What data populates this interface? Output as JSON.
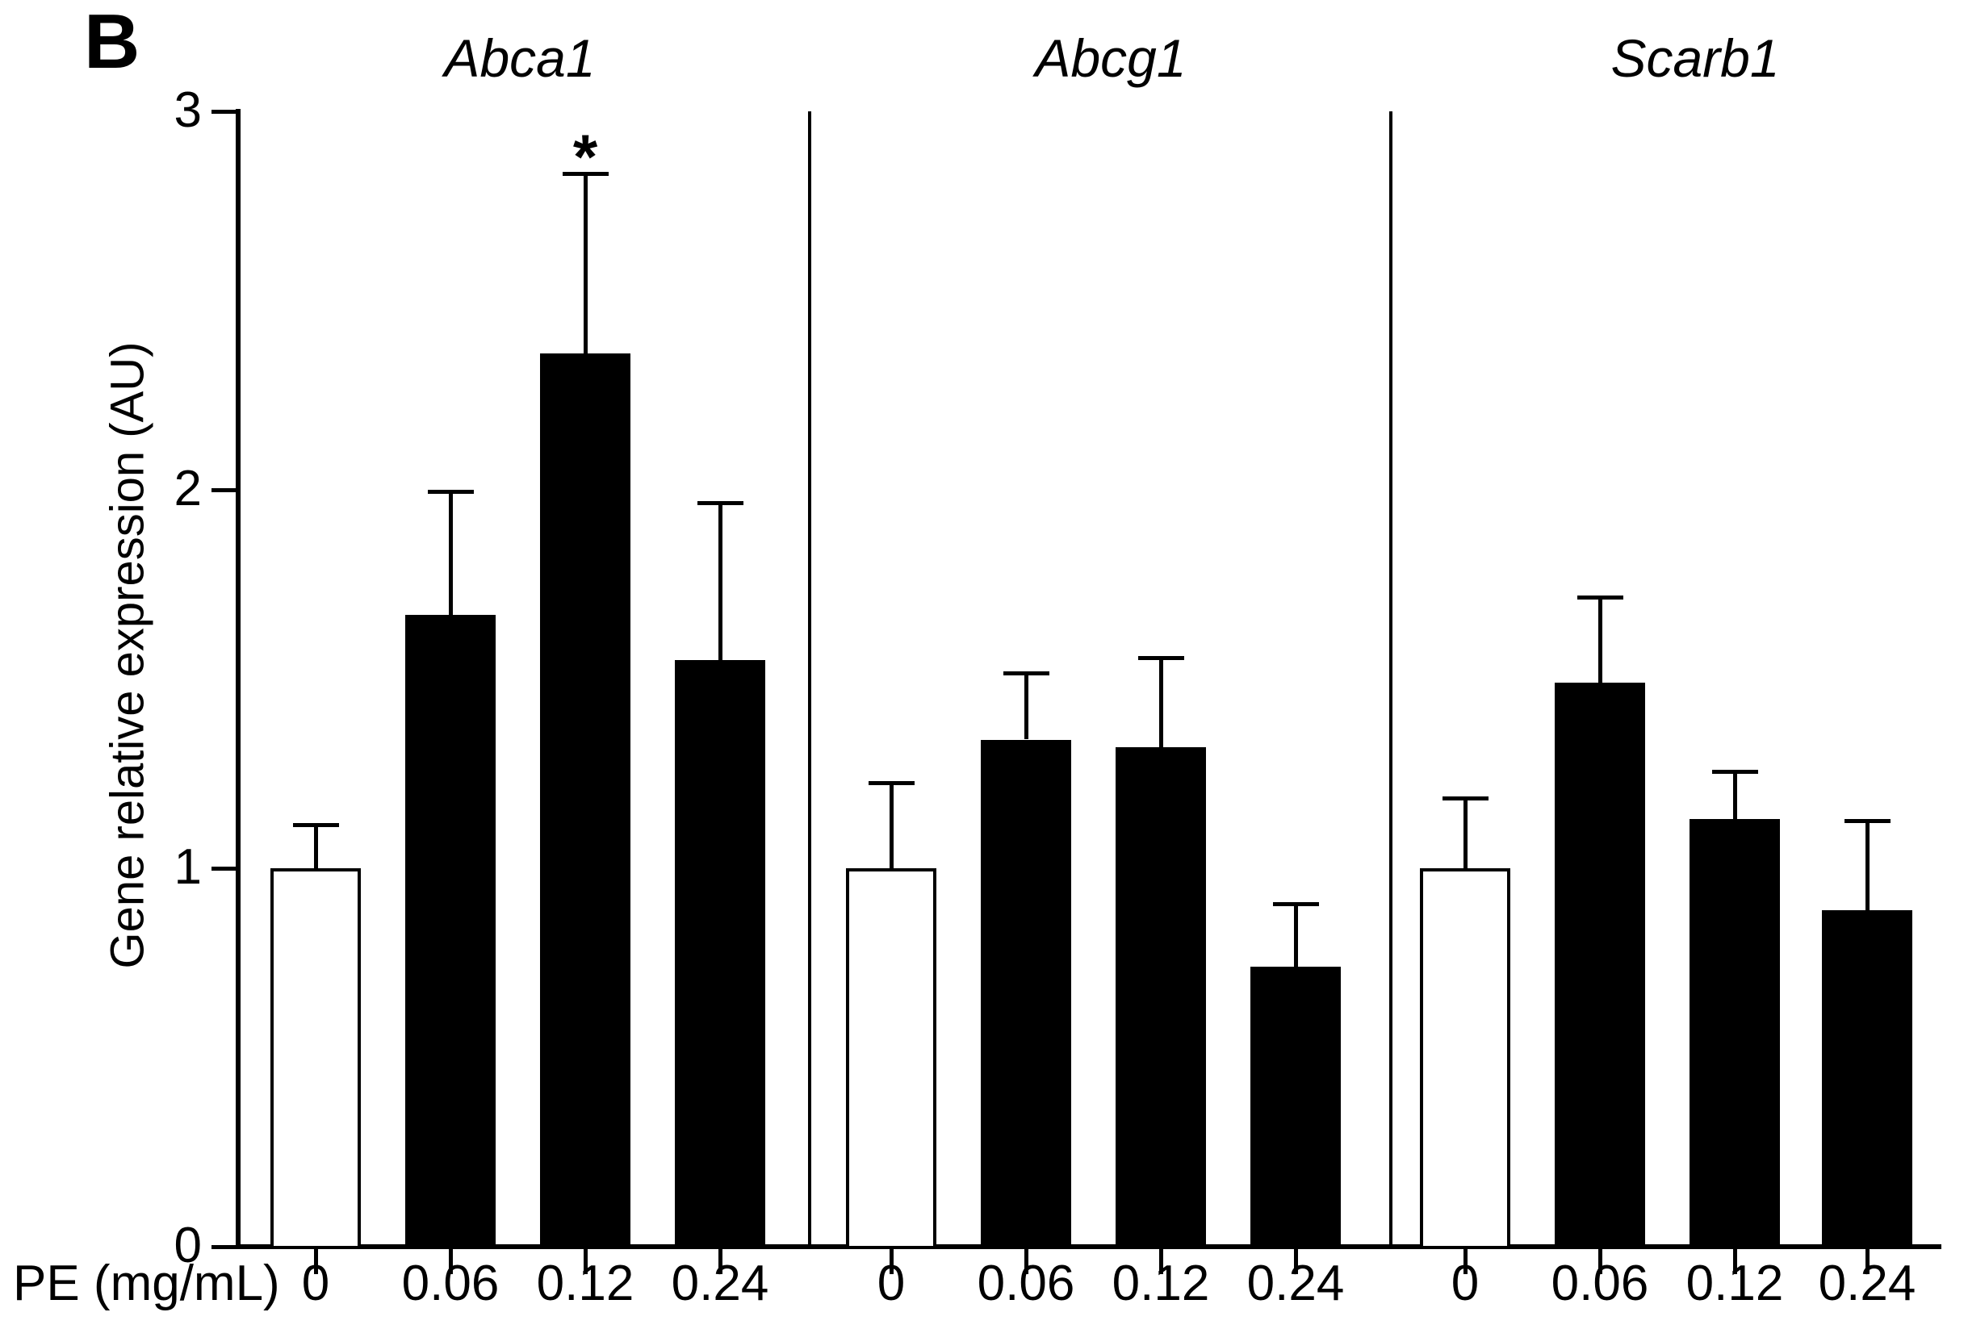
{
  "figure_label": "B",
  "significance_note": "*",
  "chart_data": {
    "type": "bar",
    "title": "",
    "ylabel": "Gene relative expression (AU)",
    "xlabel": "PE (mg/mL)",
    "ylim": [
      0,
      3
    ],
    "yticks": [
      0,
      1,
      2,
      3
    ],
    "grid": "off",
    "legend": "none",
    "colors": {
      "control_bar_fill": "#ffffff",
      "treated_bar_fill": "#000000",
      "line": "#000000"
    },
    "error_bar_type": "SEM, upper only",
    "panels": [
      {
        "title": "Abca1",
        "categories": [
          "0",
          "0.06",
          "0.12",
          "0.24"
        ],
        "values": [
          1.0,
          1.67,
          2.36,
          1.55
        ],
        "errors": [
          0.12,
          0.33,
          0.48,
          0.42
        ],
        "fills": [
          "white",
          "black",
          "black",
          "black"
        ],
        "significance": [
          "",
          "",
          "*",
          ""
        ]
      },
      {
        "title": "Abcg1",
        "categories": [
          "0",
          "0.06",
          "0.12",
          "0.24"
        ],
        "values": [
          1.0,
          1.34,
          1.32,
          0.74
        ],
        "errors": [
          0.23,
          0.18,
          0.24,
          0.17
        ],
        "fills": [
          "white",
          "black",
          "black",
          "black"
        ],
        "significance": [
          "",
          "",
          "",
          ""
        ]
      },
      {
        "title": "Scarb1",
        "categories": [
          "0",
          "0.06",
          "0.12",
          "0.24"
        ],
        "values": [
          1.0,
          1.49,
          1.13,
          0.89
        ],
        "errors": [
          0.19,
          0.23,
          0.13,
          0.24
        ],
        "fills": [
          "white",
          "black",
          "black",
          "black"
        ],
        "significance": [
          "",
          "",
          "",
          ""
        ]
      }
    ]
  }
}
